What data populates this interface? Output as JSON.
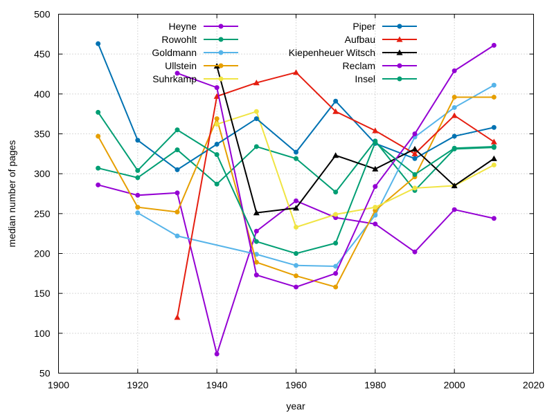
{
  "chart_data": {
    "type": "line",
    "title": "",
    "xlabel": "year",
    "ylabel": "median number of pages",
    "xlim": [
      1900,
      2020
    ],
    "ylim": [
      50,
      500
    ],
    "xticks": [
      1900,
      1920,
      1940,
      1960,
      1980,
      2000,
      2020
    ],
    "yticks": [
      50,
      100,
      150,
      200,
      250,
      300,
      350,
      400,
      450,
      500
    ],
    "grid": true,
    "legend_position": "top",
    "series": [
      {
        "name": "Heyne",
        "color": "#9400d3",
        "marker": "circle",
        "points": [
          [
            1910,
            286
          ],
          [
            1920,
            273
          ],
          [
            1930,
            276
          ],
          [
            1940,
            74
          ],
          [
            1950,
            228
          ],
          [
            1960,
            266
          ],
          [
            1970,
            245
          ],
          [
            1980,
            237
          ],
          [
            1990,
            202
          ],
          [
            2000,
            255
          ],
          [
            2010,
            244
          ]
        ]
      },
      {
        "name": "Rowohlt",
        "color": "#009e73",
        "marker": "circle",
        "points": [
          [
            1910,
            307
          ],
          [
            1920,
            295
          ],
          [
            1930,
            330
          ],
          [
            1940,
            287
          ],
          [
            1950,
            334
          ],
          [
            1960,
            319
          ],
          [
            1970,
            277
          ],
          [
            1980,
            341
          ],
          [
            1990,
            279
          ],
          [
            2000,
            331
          ],
          [
            2010,
            333
          ]
        ]
      },
      {
        "name": "Goldmann",
        "color": "#56b4e9",
        "marker": "circle",
        "points": [
          [
            1920,
            251
          ],
          [
            1930,
            222
          ],
          [
            1950,
            199
          ],
          [
            1960,
            185
          ],
          [
            1970,
            184
          ],
          [
            1980,
            248
          ],
          [
            1990,
            346
          ],
          [
            2000,
            383
          ],
          [
            2010,
            411
          ]
        ]
      },
      {
        "name": "Ullstein",
        "color": "#e69f00",
        "marker": "circle",
        "points": [
          [
            1910,
            347
          ],
          [
            1920,
            258
          ],
          [
            1930,
            252
          ],
          [
            1940,
            369
          ],
          [
            1950,
            189
          ],
          [
            1960,
            172
          ],
          [
            1970,
            158
          ],
          [
            1980,
            254
          ],
          [
            1990,
            296
          ],
          [
            2000,
            396
          ],
          [
            2010,
            396
          ]
        ]
      },
      {
        "name": "Suhrkamp",
        "color": "#f0e442",
        "marker": "circle",
        "points": [
          [
            1940,
            362
          ],
          [
            1950,
            378
          ],
          [
            1960,
            233
          ],
          [
            1970,
            249
          ],
          [
            1980,
            258
          ],
          [
            1990,
            282
          ],
          [
            2000,
            285
          ],
          [
            2010,
            311
          ]
        ]
      },
      {
        "name": "Piper",
        "color": "#0072b2",
        "marker": "circle",
        "points": [
          [
            1910,
            463
          ],
          [
            1920,
            342
          ],
          [
            1930,
            305
          ],
          [
            1940,
            337
          ],
          [
            1950,
            369
          ],
          [
            1960,
            327
          ],
          [
            1970,
            391
          ],
          [
            1980,
            338
          ],
          [
            1990,
            319
          ],
          [
            2000,
            347
          ],
          [
            2010,
            358
          ]
        ]
      },
      {
        "name": "Aufbau",
        "color": "#e51e10",
        "marker": "triangle",
        "points": [
          [
            1930,
            120
          ],
          [
            1940,
            397
          ],
          [
            1950,
            414
          ],
          [
            1960,
            427
          ],
          [
            1970,
            378
          ],
          [
            1980,
            354
          ],
          [
            1990,
            325
          ],
          [
            2000,
            373
          ],
          [
            2010,
            340
          ]
        ]
      },
      {
        "name": "Kiepenheuer Witsch",
        "color": "#000000",
        "marker": "triangle",
        "points": [
          [
            1940,
            435
          ],
          [
            1950,
            251
          ],
          [
            1960,
            257
          ],
          [
            1970,
            323
          ],
          [
            1980,
            306
          ],
          [
            1990,
            331
          ],
          [
            2000,
            285
          ],
          [
            2010,
            319
          ]
        ]
      },
      {
        "name": "Reclam",
        "color": "#9400d3",
        "marker": "circle",
        "points": [
          [
            1930,
            426
          ],
          [
            1940,
            408
          ],
          [
            1950,
            173
          ],
          [
            1960,
            158
          ],
          [
            1970,
            175
          ],
          [
            1980,
            284
          ],
          [
            1990,
            350
          ],
          [
            2000,
            429
          ],
          [
            2010,
            461
          ]
        ]
      },
      {
        "name": "Insel",
        "color": "#009e73",
        "marker": "circle",
        "points": [
          [
            1910,
            377
          ],
          [
            1920,
            304
          ],
          [
            1930,
            355
          ],
          [
            1940,
            324
          ],
          [
            1950,
            215
          ],
          [
            1960,
            200
          ],
          [
            1970,
            213
          ],
          [
            1980,
            339
          ],
          [
            1990,
            299
          ],
          [
            2000,
            332
          ],
          [
            2010,
            334
          ]
        ]
      }
    ]
  }
}
